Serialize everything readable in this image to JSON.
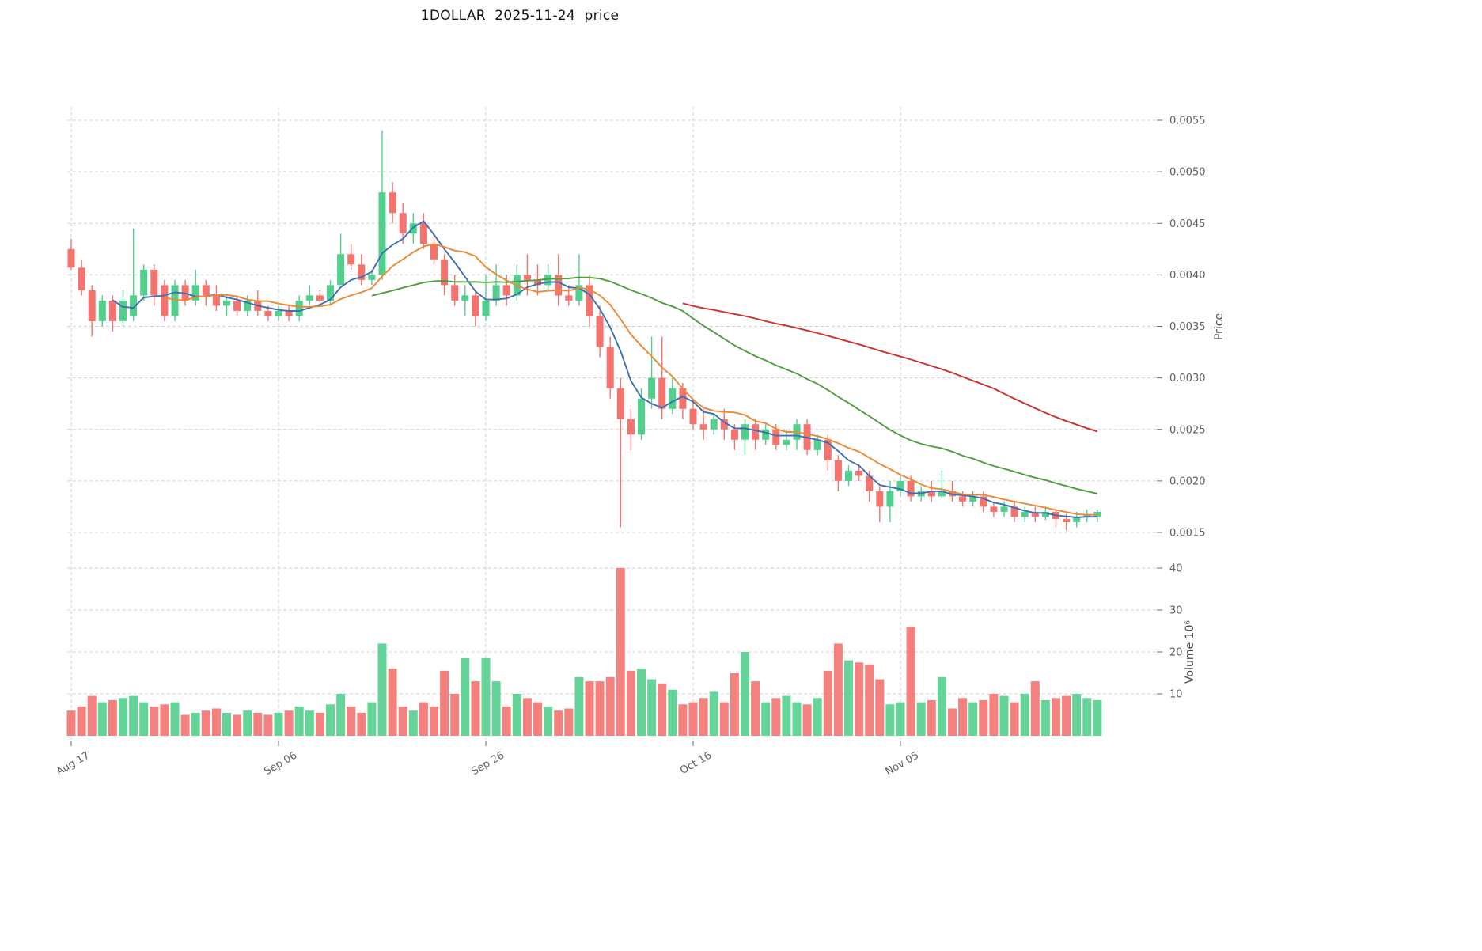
{
  "title": "1DOLLAR  2025-11-24  price",
  "chart_data": {
    "type": "candlestick",
    "title": "1DOLLAR  2025-11-24  price",
    "grid": true,
    "legend": false,
    "x_axis": {
      "tick_labels": [
        "Aug 17",
        "Sep 06",
        "Sep 26",
        "Oct 16",
        "Nov 05"
      ],
      "tick_indices": [
        0,
        20,
        40,
        60,
        80
      ]
    },
    "price_axis": {
      "label": "Price",
      "side": "right",
      "ticks": [
        0.0015,
        0.002,
        0.0025,
        0.003,
        0.0035,
        0.004,
        0.0045,
        0.005,
        0.0055
      ],
      "range": [
        0.00135,
        0.0056
      ]
    },
    "volume_axis": {
      "label": "Volume  10⁶",
      "side": "right",
      "ticks": [
        10,
        20,
        30,
        40
      ],
      "range": [
        0,
        42
      ]
    },
    "colors": {
      "up": "#53cf8d",
      "down": "#f3736f",
      "grid": "#c9c9c9",
      "tick_text": "#5f5f5f",
      "title_text": "#111111"
    },
    "moving_averages": [
      {
        "period": 5,
        "color": "#3c6fb5"
      },
      {
        "period": 10,
        "color": "#ee8833"
      },
      {
        "period": 30,
        "color": "#4f9d3e"
      },
      {
        "period": 60,
        "color": "#cf2f2f"
      }
    ],
    "ohlcv_columns": [
      "open",
      "high",
      "low",
      "close",
      "volume_millions"
    ],
    "ohlcv": [
      [
        0.00425,
        0.00435,
        0.00405,
        0.00407,
        6
      ],
      [
        0.00407,
        0.00415,
        0.0038,
        0.00385,
        7
      ],
      [
        0.00385,
        0.0039,
        0.0034,
        0.00355,
        9.5
      ],
      [
        0.00355,
        0.0038,
        0.0035,
        0.00375,
        8
      ],
      [
        0.00375,
        0.0038,
        0.00345,
        0.00355,
        8.5
      ],
      [
        0.00355,
        0.00385,
        0.0035,
        0.00375,
        9
      ],
      [
        0.0036,
        0.00445,
        0.00355,
        0.0038,
        9.5
      ],
      [
        0.0038,
        0.0041,
        0.00375,
        0.00405,
        8
      ],
      [
        0.00405,
        0.0041,
        0.0037,
        0.0038,
        7
      ],
      [
        0.0039,
        0.00395,
        0.00355,
        0.0036,
        7.5
      ],
      [
        0.0036,
        0.00395,
        0.00355,
        0.0039,
        8
      ],
      [
        0.0039,
        0.00395,
        0.0037,
        0.00375,
        5
      ],
      [
        0.00375,
        0.00405,
        0.0037,
        0.0039,
        5.5
      ],
      [
        0.0039,
        0.00395,
        0.0037,
        0.0038,
        6
      ],
      [
        0.0038,
        0.0039,
        0.00365,
        0.0037,
        6.5
      ],
      [
        0.0037,
        0.0038,
        0.0036,
        0.00375,
        5.5
      ],
      [
        0.00375,
        0.0038,
        0.0036,
        0.00365,
        5
      ],
      [
        0.00365,
        0.0038,
        0.0036,
        0.00375,
        6
      ],
      [
        0.00375,
        0.00385,
        0.0036,
        0.00365,
        5.5
      ],
      [
        0.00365,
        0.0037,
        0.00355,
        0.0036,
        5
      ],
      [
        0.0036,
        0.0037,
        0.00355,
        0.00365,
        5.5
      ],
      [
        0.00365,
        0.0037,
        0.00355,
        0.0036,
        6
      ],
      [
        0.0036,
        0.0038,
        0.00355,
        0.00375,
        7
      ],
      [
        0.00375,
        0.0039,
        0.0037,
        0.0038,
        6
      ],
      [
        0.0038,
        0.00385,
        0.0037,
        0.00375,
        5.5
      ],
      [
        0.00375,
        0.00395,
        0.0037,
        0.0039,
        7.5
      ],
      [
        0.0039,
        0.0044,
        0.0039,
        0.0042,
        10
      ],
      [
        0.0042,
        0.0043,
        0.00405,
        0.0041,
        7
      ],
      [
        0.0041,
        0.0042,
        0.0039,
        0.00395,
        5.5
      ],
      [
        0.00395,
        0.00405,
        0.0039,
        0.004,
        8
      ],
      [
        0.004,
        0.0054,
        0.00395,
        0.0048,
        22
      ],
      [
        0.0048,
        0.0049,
        0.0045,
        0.0046,
        16
      ],
      [
        0.0046,
        0.0047,
        0.0043,
        0.0044,
        7
      ],
      [
        0.0044,
        0.0046,
        0.0043,
        0.0045,
        6
      ],
      [
        0.0045,
        0.0046,
        0.00425,
        0.0043,
        8
      ],
      [
        0.0043,
        0.0044,
        0.0041,
        0.00415,
        7
      ],
      [
        0.00415,
        0.0042,
        0.0038,
        0.0039,
        15.5
      ],
      [
        0.0039,
        0.004,
        0.0037,
        0.00375,
        10
      ],
      [
        0.00375,
        0.0039,
        0.0036,
        0.0038,
        18.5
      ],
      [
        0.0038,
        0.00385,
        0.0035,
        0.0036,
        13
      ],
      [
        0.0036,
        0.004,
        0.00355,
        0.00375,
        18.5
      ],
      [
        0.00375,
        0.0041,
        0.0037,
        0.0039,
        13
      ],
      [
        0.0039,
        0.004,
        0.0037,
        0.0038,
        7
      ],
      [
        0.0038,
        0.0041,
        0.00375,
        0.004,
        10
      ],
      [
        0.004,
        0.0042,
        0.0038,
        0.00395,
        9
      ],
      [
        0.00395,
        0.0041,
        0.0038,
        0.0039,
        8
      ],
      [
        0.0039,
        0.0041,
        0.00385,
        0.004,
        7
      ],
      [
        0.004,
        0.0042,
        0.0037,
        0.0038,
        6
      ],
      [
        0.0038,
        0.0039,
        0.0037,
        0.00375,
        6.5
      ],
      [
        0.00375,
        0.0042,
        0.0037,
        0.0039,
        14
      ],
      [
        0.0039,
        0.004,
        0.0035,
        0.0036,
        13
      ],
      [
        0.0036,
        0.0037,
        0.0032,
        0.0033,
        13
      ],
      [
        0.0033,
        0.0034,
        0.0028,
        0.0029,
        14
      ],
      [
        0.0029,
        0.003,
        0.00155,
        0.0026,
        40
      ],
      [
        0.0026,
        0.0027,
        0.0023,
        0.00245,
        15.5
      ],
      [
        0.00245,
        0.0029,
        0.0024,
        0.0028,
        16
      ],
      [
        0.0028,
        0.0034,
        0.0027,
        0.003,
        13.5
      ],
      [
        0.003,
        0.0034,
        0.0026,
        0.0027,
        12.5
      ],
      [
        0.0027,
        0.003,
        0.00265,
        0.0029,
        11
      ],
      [
        0.0029,
        0.00295,
        0.0026,
        0.0027,
        7.5
      ],
      [
        0.0027,
        0.0028,
        0.0025,
        0.00255,
        8
      ],
      [
        0.00255,
        0.0027,
        0.0024,
        0.0025,
        9
      ],
      [
        0.0025,
        0.00265,
        0.00245,
        0.0026,
        10.5
      ],
      [
        0.0026,
        0.0027,
        0.0024,
        0.0025,
        8
      ],
      [
        0.0025,
        0.00255,
        0.0023,
        0.0024,
        15
      ],
      [
        0.0024,
        0.0026,
        0.00225,
        0.00255,
        20
      ],
      [
        0.00255,
        0.0026,
        0.0023,
        0.0024,
        13
      ],
      [
        0.0024,
        0.00255,
        0.00235,
        0.0025,
        8
      ],
      [
        0.0025,
        0.00255,
        0.0023,
        0.00235,
        9
      ],
      [
        0.00235,
        0.0025,
        0.0023,
        0.0024,
        9.5
      ],
      [
        0.0024,
        0.0026,
        0.0023,
        0.00255,
        8
      ],
      [
        0.00255,
        0.0026,
        0.00225,
        0.0023,
        7.5
      ],
      [
        0.0023,
        0.00245,
        0.00225,
        0.0024,
        9
      ],
      [
        0.0024,
        0.00245,
        0.0021,
        0.0022,
        15.5
      ],
      [
        0.0022,
        0.00225,
        0.0019,
        0.002,
        22
      ],
      [
        0.002,
        0.00215,
        0.00195,
        0.0021,
        18
      ],
      [
        0.0021,
        0.00215,
        0.002,
        0.00205,
        17.5
      ],
      [
        0.00205,
        0.0021,
        0.0018,
        0.0019,
        17
      ],
      [
        0.0019,
        0.00195,
        0.0016,
        0.00175,
        13.5
      ],
      [
        0.00175,
        0.002,
        0.0016,
        0.0019,
        7.5
      ],
      [
        0.0019,
        0.00205,
        0.00185,
        0.002,
        8
      ],
      [
        0.002,
        0.00205,
        0.0018,
        0.00185,
        26
      ],
      [
        0.00185,
        0.00195,
        0.0018,
        0.0019,
        8
      ],
      [
        0.0019,
        0.002,
        0.0018,
        0.00185,
        8.5
      ],
      [
        0.00185,
        0.0021,
        0.00183,
        0.0019,
        14
      ],
      [
        0.0019,
        0.002,
        0.0018,
        0.00185,
        6.5
      ],
      [
        0.00185,
        0.0019,
        0.00175,
        0.0018,
        9
      ],
      [
        0.0018,
        0.0019,
        0.00175,
        0.00185,
        8
      ],
      [
        0.00185,
        0.0019,
        0.0017,
        0.00175,
        8.5
      ],
      [
        0.00175,
        0.0018,
        0.00165,
        0.0017,
        10
      ],
      [
        0.0017,
        0.0018,
        0.00165,
        0.00175,
        9.5
      ],
      [
        0.00175,
        0.0018,
        0.0016,
        0.00165,
        8
      ],
      [
        0.00165,
        0.00175,
        0.0016,
        0.0017,
        10
      ],
      [
        0.0017,
        0.00175,
        0.0016,
        0.00165,
        13
      ],
      [
        0.00165,
        0.00175,
        0.00162,
        0.0017,
        8.5
      ],
      [
        0.0017,
        0.00172,
        0.00155,
        0.00163,
        9
      ],
      [
        0.00163,
        0.00168,
        0.00152,
        0.0016,
        9.5
      ],
      [
        0.0016,
        0.0017,
        0.00155,
        0.00165,
        10
      ],
      [
        0.00165,
        0.00172,
        0.0016,
        0.00168,
        9
      ],
      [
        0.00165,
        0.00172,
        0.0016,
        0.0017,
        8.5
      ]
    ]
  }
}
